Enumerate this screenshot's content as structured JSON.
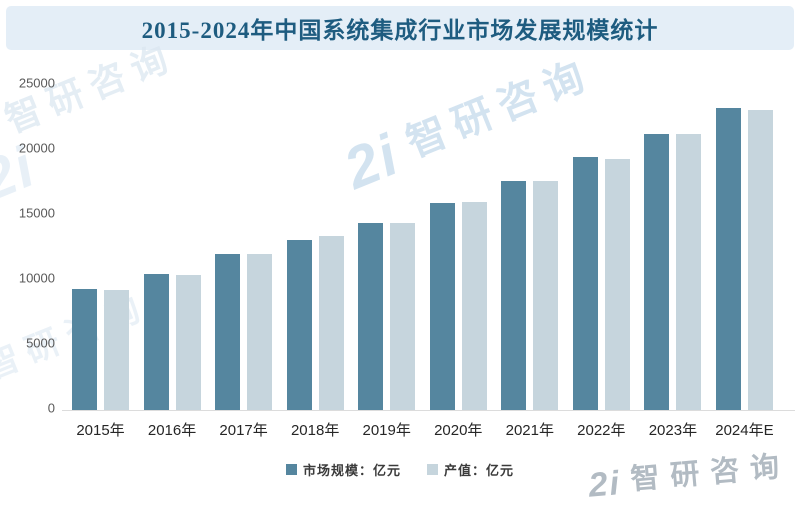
{
  "title_bar": {
    "title": "2015-2024年中国系统集成行业市场发展规模统计"
  },
  "watermark": {
    "logo_text": "2i",
    "brand_text": "智研咨询"
  },
  "chart_data": {
    "type": "bar",
    "title": "2015-2024年中国系统集成行业市场发展规模统计",
    "categories": [
      "2015年",
      "2016年",
      "2017年",
      "2018年",
      "2019年",
      "2020年",
      "2021年",
      "2022年",
      "2023年",
      "2024年E"
    ],
    "series": [
      {
        "name": "市场规模：亿元",
        "values": [
          9300,
          10450,
          12000,
          13100,
          14400,
          15950,
          17650,
          19450,
          21250,
          23200
        ]
      },
      {
        "name": "产值：亿元",
        "values": [
          9250,
          10400,
          12000,
          13350,
          14400,
          16000,
          17600,
          19300,
          21200,
          23050
        ]
      }
    ],
    "series_colors": [
      "#55869f",
      "#c6d5dd"
    ],
    "xlabel": "",
    "ylabel": "",
    "ylim": [
      0,
      25000
    ],
    "y_ticks": [
      0,
      5000,
      10000,
      15000,
      20000,
      25000
    ],
    "grid": false,
    "legend_position": "bottom"
  }
}
